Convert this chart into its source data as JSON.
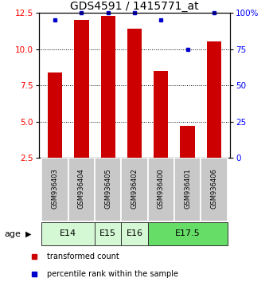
{
  "title": "GDS4591 / 1415771_at",
  "samples": [
    "GSM936403",
    "GSM936404",
    "GSM936405",
    "GSM936402",
    "GSM936400",
    "GSM936401",
    "GSM936406"
  ],
  "red_values": [
    8.4,
    12.0,
    12.25,
    11.4,
    8.5,
    4.7,
    10.5
  ],
  "blue_values": [
    95,
    100,
    100,
    100,
    95,
    75,
    100
  ],
  "ylim_left": [
    2.5,
    12.5
  ],
  "ylim_right": [
    0,
    100
  ],
  "yticks_left": [
    2.5,
    5.0,
    7.5,
    10.0,
    12.5
  ],
  "yticks_right": [
    0,
    25,
    50,
    75,
    100
  ],
  "ytick_labels_right": [
    "0",
    "25",
    "50",
    "75",
    "100%"
  ],
  "age_groups": [
    {
      "label": "E14",
      "start": 0,
      "end": 1,
      "color": "#d4f7d4"
    },
    {
      "label": "E15",
      "start": 2,
      "end": 2,
      "color": "#d4f7d4"
    },
    {
      "label": "E16",
      "start": 3,
      "end": 3,
      "color": "#d4f7d4"
    },
    {
      "label": "E17.5",
      "start": 4,
      "end": 6,
      "color": "#66dd66"
    }
  ],
  "bar_color": "#cc0000",
  "dot_color": "#0000cc",
  "bar_width": 0.55,
  "sample_box_color": "#c8c8c8",
  "title_fontsize": 10,
  "tick_fontsize": 7.5,
  "sample_fontsize": 6,
  "age_fontsize": 8,
  "legend_fontsize": 7,
  "age_label": "age",
  "legend_red": "transformed count",
  "legend_blue": "percentile rank within the sample",
  "dotted_lines": [
    5.0,
    7.5,
    10.0
  ]
}
